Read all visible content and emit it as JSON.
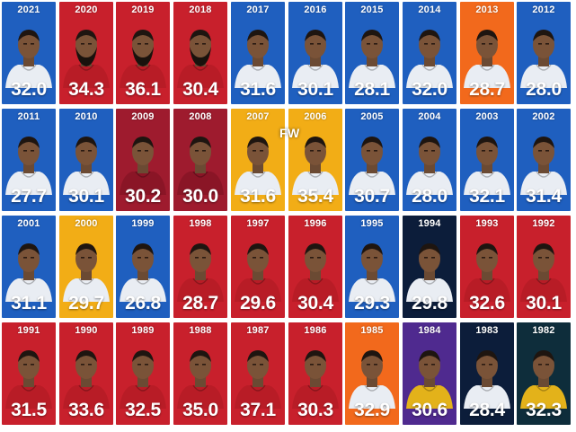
{
  "watermark": "FW",
  "colors": {
    "blue": "#1f5fbf",
    "red": "#c8202c",
    "crimson": "#9e1b2e",
    "gold": "#f2ad16",
    "orange": "#f2691c",
    "navy": "#0c1d3a",
    "purple": "#4f2a8f",
    "teal_dark": "#0e2d3b"
  },
  "rows": [
    [
      {
        "year": "2021",
        "value": "32.0",
        "bg": "blue",
        "jersey": "light"
      },
      {
        "year": "2020",
        "value": "34.3",
        "bg": "red",
        "jersey": "red",
        "beard": true
      },
      {
        "year": "2019",
        "value": "36.1",
        "bg": "red",
        "jersey": "red",
        "beard": true
      },
      {
        "year": "2018",
        "value": "30.4",
        "bg": "red",
        "jersey": "red",
        "beard": true
      },
      {
        "year": "2017",
        "value": "31.6",
        "bg": "blue",
        "jersey": "light"
      },
      {
        "year": "2016",
        "value": "30.1",
        "bg": "blue",
        "jersey": "light"
      },
      {
        "year": "2015",
        "value": "28.1",
        "bg": "blue",
        "jersey": "light"
      },
      {
        "year": "2014",
        "value": "32.0",
        "bg": "blue",
        "jersey": "light"
      },
      {
        "year": "2013",
        "value": "28.7",
        "bg": "orange",
        "jersey": "light"
      },
      {
        "year": "2012",
        "value": "28.0",
        "bg": "blue",
        "jersey": "light"
      }
    ],
    [
      {
        "year": "2011",
        "value": "27.7",
        "bg": "blue",
        "jersey": "light"
      },
      {
        "year": "2010",
        "value": "30.1",
        "bg": "blue",
        "jersey": "light"
      },
      {
        "year": "2009",
        "value": "30.2",
        "bg": "crimson",
        "jersey": "crimson"
      },
      {
        "year": "2008",
        "value": "30.0",
        "bg": "crimson",
        "jersey": "crimson"
      },
      {
        "year": "2007",
        "value": "31.6",
        "bg": "gold",
        "jersey": "light"
      },
      {
        "year": "2006",
        "value": "35.4",
        "bg": "gold",
        "jersey": "light"
      },
      {
        "year": "2005",
        "value": "30.7",
        "bg": "blue",
        "jersey": "light"
      },
      {
        "year": "2004",
        "value": "28.0",
        "bg": "blue",
        "jersey": "light"
      },
      {
        "year": "2003",
        "value": "32.1",
        "bg": "blue",
        "jersey": "light"
      },
      {
        "year": "2002",
        "value": "31.4",
        "bg": "blue",
        "jersey": "light"
      }
    ],
    [
      {
        "year": "2001",
        "value": "31.1",
        "bg": "blue",
        "jersey": "light"
      },
      {
        "year": "2000",
        "value": "29.7",
        "bg": "gold",
        "jersey": "light"
      },
      {
        "year": "1999",
        "value": "26.8",
        "bg": "blue",
        "jersey": "light"
      },
      {
        "year": "1998",
        "value": "28.7",
        "bg": "red",
        "jersey": "red"
      },
      {
        "year": "1997",
        "value": "29.6",
        "bg": "red",
        "jersey": "red"
      },
      {
        "year": "1996",
        "value": "30.4",
        "bg": "red",
        "jersey": "red"
      },
      {
        "year": "1995",
        "value": "29.3",
        "bg": "blue",
        "jersey": "light"
      },
      {
        "year": "1994",
        "value": "29.8",
        "bg": "navy",
        "jersey": "light"
      },
      {
        "year": "1993",
        "value": "32.6",
        "bg": "red",
        "jersey": "red"
      },
      {
        "year": "1992",
        "value": "30.1",
        "bg": "red",
        "jersey": "red"
      }
    ],
    [
      {
        "year": "1991",
        "value": "31.5",
        "bg": "red",
        "jersey": "red"
      },
      {
        "year": "1990",
        "value": "33.6",
        "bg": "red",
        "jersey": "red"
      },
      {
        "year": "1989",
        "value": "32.5",
        "bg": "red",
        "jersey": "red"
      },
      {
        "year": "1988",
        "value": "35.0",
        "bg": "red",
        "jersey": "red"
      },
      {
        "year": "1987",
        "value": "37.1",
        "bg": "red",
        "jersey": "red"
      },
      {
        "year": "1986",
        "value": "30.3",
        "bg": "red",
        "jersey": "red"
      },
      {
        "year": "1985",
        "value": "32.9",
        "bg": "orange",
        "jersey": "light"
      },
      {
        "year": "1984",
        "value": "30.6",
        "bg": "purple",
        "jersey": "gold"
      },
      {
        "year": "1983",
        "value": "28.4",
        "bg": "navy",
        "jersey": "light"
      },
      {
        "year": "1982",
        "value": "32.3",
        "bg": "teal_dark",
        "jersey": "gold"
      }
    ]
  ]
}
